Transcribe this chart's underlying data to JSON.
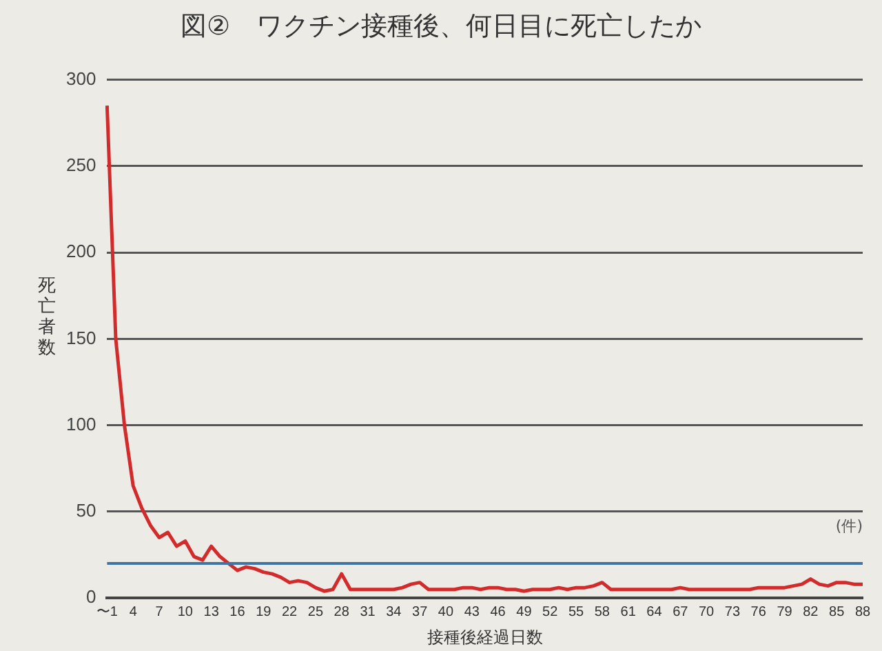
{
  "chart_data": {
    "type": "line",
    "title": "図②　ワクチン接種後、何日目に死亡したか",
    "xlabel": "接種後経過日数",
    "ylabel": "死亡者数",
    "annotations": [
      "(件)"
    ],
    "categories": [
      "〜1",
      null,
      null,
      "4",
      null,
      null,
      "7",
      null,
      null,
      "10",
      null,
      null,
      "13",
      null,
      null,
      "16",
      null,
      null,
      "19",
      null,
      null,
      "22",
      null,
      null,
      "25",
      null,
      null,
      "28",
      null,
      null,
      "31",
      null,
      null,
      "34",
      null,
      null,
      "37",
      null,
      null,
      "40",
      null,
      null,
      "43",
      null,
      null,
      "46",
      null,
      null,
      "49",
      null,
      null,
      "52",
      null,
      null,
      "55",
      null,
      null,
      "58",
      null,
      null,
      "61",
      null,
      null,
      "64",
      null,
      null,
      "67",
      null,
      null,
      "70",
      null,
      null,
      "73",
      null,
      null,
      "76",
      null,
      null,
      "79",
      null,
      null,
      "82",
      null,
      null,
      "85",
      null,
      null,
      "88"
    ],
    "series": [
      {
        "color": "#d22b2b",
        "values": [
          285,
          150,
          100,
          65,
          52,
          42,
          35,
          38,
          30,
          33,
          24,
          22,
          30,
          24,
          20,
          16,
          18,
          17,
          15,
          14,
          12,
          9,
          10,
          9,
          6,
          4,
          5,
          14,
          5,
          5,
          5,
          5,
          5,
          5,
          6,
          8,
          9,
          5,
          5,
          5,
          5,
          6,
          6,
          5,
          6,
          6,
          5,
          5,
          4,
          5,
          5,
          5,
          6,
          5,
          6,
          6,
          7,
          9,
          5,
          5,
          5,
          5,
          5,
          5,
          5,
          5,
          6,
          5,
          5,
          5,
          5,
          5,
          5,
          5,
          5,
          6,
          6,
          6,
          6,
          7,
          8,
          11,
          8,
          7,
          9,
          9,
          8,
          8
        ]
      }
    ],
    "ref_lines": [
      {
        "axis": "y",
        "value": 20,
        "color": "#3f74a8"
      }
    ],
    "ylim": [
      0,
      300
    ],
    "yticks": [
      0,
      50,
      100,
      150,
      200,
      250,
      300
    ],
    "grid": "y",
    "legend": false,
    "marker": "none",
    "line_style": "solid"
  }
}
